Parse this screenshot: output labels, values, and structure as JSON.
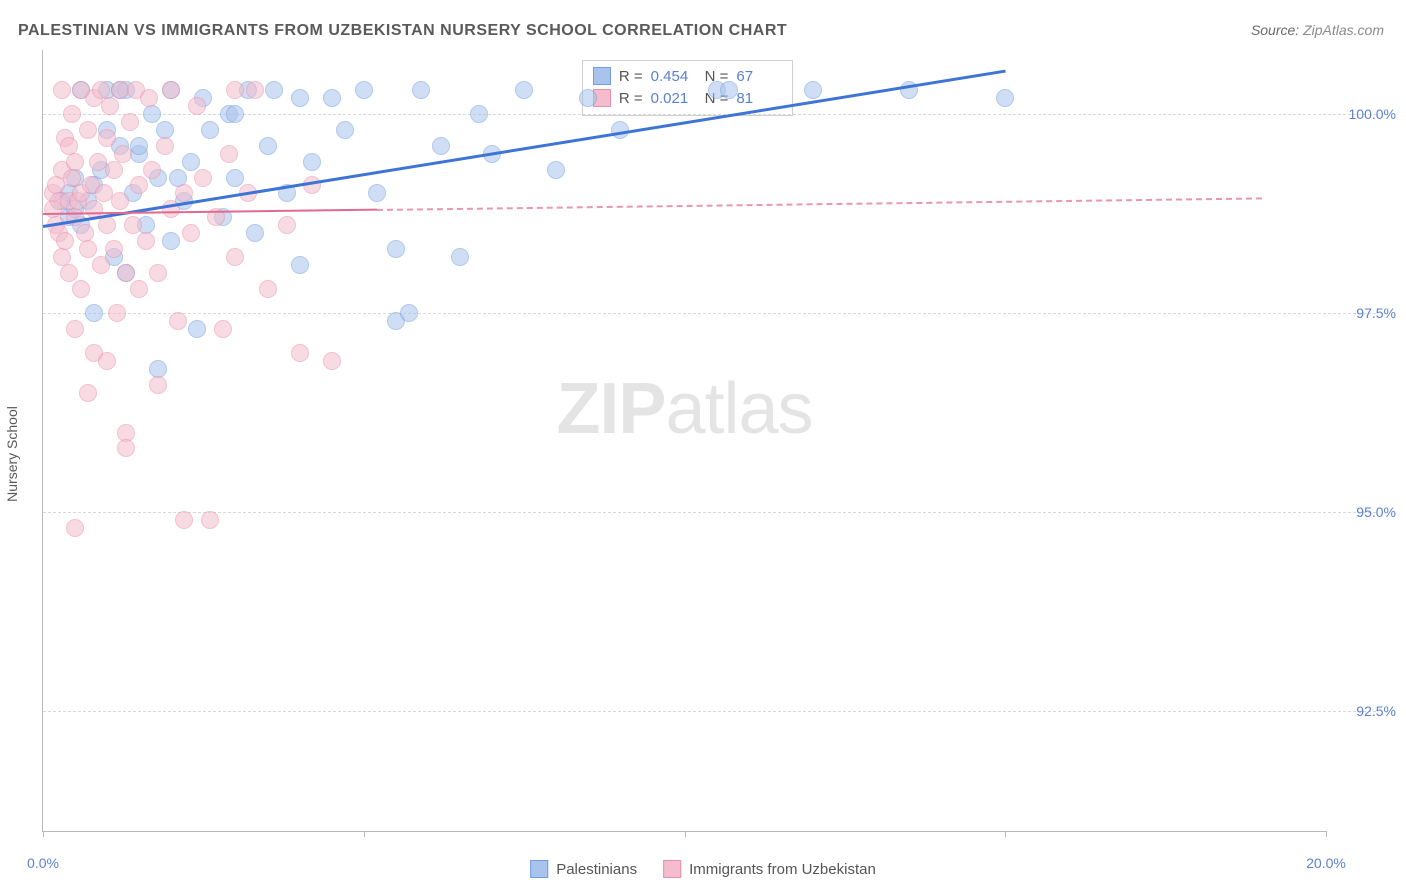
{
  "title": "PALESTINIAN VS IMMIGRANTS FROM UZBEKISTAN NURSERY SCHOOL CORRELATION CHART",
  "source_label": "Source:",
  "source_value": "ZipAtlas.com",
  "ylabel": "Nursery School",
  "watermark": {
    "bold": "ZIP",
    "light": "atlas"
  },
  "chart": {
    "type": "scatter",
    "background_color": "#ffffff",
    "grid_color": "#d8d8d8",
    "axis_color": "#b8b8b8",
    "xlim": [
      0,
      20
    ],
    "ylim": [
      91,
      100.8
    ],
    "xticks": [
      0,
      5,
      10,
      15,
      20
    ],
    "xtick_labels": {
      "0": "0.0%",
      "20": "20.0%"
    },
    "yticks": [
      92.5,
      95.0,
      97.5,
      100.0
    ],
    "ytick_labels": [
      "92.5%",
      "95.0%",
      "97.5%",
      "100.0%"
    ],
    "marker_radius": 9,
    "marker_opacity": 0.55,
    "series": [
      {
        "name": "Palestinians",
        "color_fill": "#a9c4ec",
        "color_stroke": "#6f9de0",
        "R": "0.454",
        "N": "67",
        "trend": {
          "x1": 0,
          "y1": 98.6,
          "x2": 15,
          "y2": 100.55,
          "solid_until_x": 15,
          "color": "#3d74d6",
          "width": 3
        },
        "points": [
          [
            0.3,
            98.9
          ],
          [
            0.4,
            99.0
          ],
          [
            0.4,
            98.7
          ],
          [
            0.5,
            98.8
          ],
          [
            0.5,
            99.2
          ],
          [
            0.6,
            98.6
          ],
          [
            0.6,
            100.3
          ],
          [
            0.7,
            98.9
          ],
          [
            0.8,
            99.1
          ],
          [
            0.8,
            97.5
          ],
          [
            0.9,
            99.3
          ],
          [
            1.0,
            100.3
          ],
          [
            1.0,
            99.8
          ],
          [
            1.1,
            98.2
          ],
          [
            1.2,
            100.3
          ],
          [
            1.2,
            99.6
          ],
          [
            1.3,
            98.0
          ],
          [
            1.3,
            100.3
          ],
          [
            1.4,
            99.0
          ],
          [
            1.5,
            99.5
          ],
          [
            1.6,
            98.6
          ],
          [
            1.7,
            100.0
          ],
          [
            1.8,
            99.2
          ],
          [
            1.8,
            96.8
          ],
          [
            1.9,
            99.8
          ],
          [
            2.0,
            98.4
          ],
          [
            2.0,
            100.3
          ],
          [
            2.2,
            98.9
          ],
          [
            2.3,
            99.4
          ],
          [
            2.4,
            97.3
          ],
          [
            2.5,
            100.2
          ],
          [
            2.6,
            99.8
          ],
          [
            2.8,
            98.7
          ],
          [
            2.9,
            100.0
          ],
          [
            3.0,
            99.2
          ],
          [
            3.2,
            100.3
          ],
          [
            3.3,
            98.5
          ],
          [
            3.5,
            99.6
          ],
          [
            3.6,
            100.3
          ],
          [
            3.8,
            99.0
          ],
          [
            4.0,
            98.1
          ],
          [
            4.0,
            100.2
          ],
          [
            4.2,
            99.4
          ],
          [
            4.5,
            100.2
          ],
          [
            4.7,
            99.8
          ],
          [
            5.0,
            100.3
          ],
          [
            5.2,
            99.0
          ],
          [
            5.5,
            98.3
          ],
          [
            5.5,
            97.4
          ],
          [
            5.7,
            97.5
          ],
          [
            5.9,
            100.3
          ],
          [
            6.2,
            99.6
          ],
          [
            6.5,
            98.2
          ],
          [
            6.8,
            100.0
          ],
          [
            7.0,
            99.5
          ],
          [
            7.5,
            100.3
          ],
          [
            8.0,
            99.3
          ],
          [
            8.5,
            100.2
          ],
          [
            9.0,
            99.8
          ],
          [
            10.5,
            100.3
          ],
          [
            10.7,
            100.3
          ],
          [
            12.0,
            100.3
          ],
          [
            13.5,
            100.3
          ],
          [
            15.0,
            100.2
          ],
          [
            1.5,
            99.6
          ],
          [
            3.0,
            100.0
          ],
          [
            2.1,
            99.2
          ]
        ]
      },
      {
        "name": "Immigrants from Uzbekistan",
        "color_fill": "#f4bccd",
        "color_stroke": "#e88fab",
        "R": "0.021",
        "N": "81",
        "trend": {
          "x1": 0,
          "y1": 98.75,
          "x2": 19,
          "y2": 98.95,
          "solid_until_x": 5.2,
          "color": "#e06a8f",
          "width": 2
        },
        "points": [
          [
            0.15,
            98.8
          ],
          [
            0.15,
            99.0
          ],
          [
            0.2,
            98.6
          ],
          [
            0.2,
            99.1
          ],
          [
            0.25,
            98.9
          ],
          [
            0.25,
            98.5
          ],
          [
            0.3,
            99.3
          ],
          [
            0.3,
            98.2
          ],
          [
            0.3,
            100.3
          ],
          [
            0.35,
            99.7
          ],
          [
            0.35,
            98.4
          ],
          [
            0.4,
            98.9
          ],
          [
            0.4,
            99.6
          ],
          [
            0.4,
            98.0
          ],
          [
            0.45,
            100.0
          ],
          [
            0.45,
            99.2
          ],
          [
            0.5,
            98.7
          ],
          [
            0.5,
            99.4
          ],
          [
            0.5,
            97.3
          ],
          [
            0.55,
            98.9
          ],
          [
            0.6,
            100.3
          ],
          [
            0.6,
            99.0
          ],
          [
            0.6,
            97.8
          ],
          [
            0.65,
            98.5
          ],
          [
            0.7,
            99.8
          ],
          [
            0.7,
            98.3
          ],
          [
            0.7,
            96.5
          ],
          [
            0.75,
            99.1
          ],
          [
            0.8,
            100.2
          ],
          [
            0.8,
            98.8
          ],
          [
            0.8,
            97.0
          ],
          [
            0.85,
            99.4
          ],
          [
            0.9,
            98.1
          ],
          [
            0.9,
            100.3
          ],
          [
            0.95,
            99.0
          ],
          [
            1.0,
            98.6
          ],
          [
            1.0,
            99.7
          ],
          [
            1.0,
            96.9
          ],
          [
            1.05,
            100.1
          ],
          [
            1.1,
            98.3
          ],
          [
            1.1,
            99.3
          ],
          [
            1.15,
            97.5
          ],
          [
            1.2,
            98.9
          ],
          [
            1.2,
            100.3
          ],
          [
            1.25,
            99.5
          ],
          [
            1.3,
            98.0
          ],
          [
            1.3,
            96.0
          ],
          [
            1.35,
            99.9
          ],
          [
            1.4,
            98.6
          ],
          [
            1.45,
            100.3
          ],
          [
            1.5,
            97.8
          ],
          [
            1.5,
            99.1
          ],
          [
            1.6,
            98.4
          ],
          [
            1.65,
            100.2
          ],
          [
            1.7,
            99.3
          ],
          [
            1.8,
            98.0
          ],
          [
            1.8,
            96.6
          ],
          [
            1.9,
            99.6
          ],
          [
            2.0,
            98.8
          ],
          [
            2.0,
            100.3
          ],
          [
            2.1,
            97.4
          ],
          [
            2.2,
            99.0
          ],
          [
            2.2,
            94.9
          ],
          [
            2.3,
            98.5
          ],
          [
            2.4,
            100.1
          ],
          [
            2.5,
            99.2
          ],
          [
            2.6,
            94.9
          ],
          [
            2.7,
            98.7
          ],
          [
            2.8,
            97.3
          ],
          [
            2.9,
            99.5
          ],
          [
            3.0,
            98.2
          ],
          [
            3.0,
            100.3
          ],
          [
            3.2,
            99.0
          ],
          [
            3.3,
            100.3
          ],
          [
            3.5,
            97.8
          ],
          [
            3.8,
            98.6
          ],
          [
            4.0,
            97.0
          ],
          [
            4.2,
            99.1
          ],
          [
            4.5,
            96.9
          ],
          [
            0.5,
            94.8
          ],
          [
            1.3,
            95.8
          ]
        ]
      }
    ]
  },
  "stats_labels": {
    "R": "R =",
    "N": "N ="
  },
  "legend": {
    "items": [
      {
        "label": "Palestinians",
        "fill": "#a9c4ec",
        "stroke": "#6f9de0"
      },
      {
        "label": "Immigrants from Uzbekistan",
        "fill": "#f4bccd",
        "stroke": "#e88fab"
      }
    ]
  }
}
